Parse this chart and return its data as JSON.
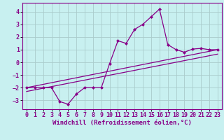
{
  "xlabel": "Windchill (Refroidissement éolien,°C)",
  "bg_color": "#c8f0f0",
  "grid_color": "#aacccc",
  "line_color": "#880088",
  "spine_color": "#880088",
  "xlim": [
    -0.5,
    23.5
  ],
  "ylim": [
    -3.7,
    4.7
  ],
  "xticks": [
    0,
    1,
    2,
    3,
    4,
    5,
    6,
    7,
    8,
    9,
    10,
    11,
    12,
    13,
    14,
    15,
    16,
    17,
    18,
    19,
    20,
    21,
    22,
    23
  ],
  "yticks": [
    -3,
    -2,
    -1,
    0,
    1,
    2,
    3,
    4
  ],
  "line1_x": [
    0,
    1,
    2,
    3,
    4,
    5,
    6,
    7,
    8,
    9,
    10,
    11,
    12,
    13,
    14,
    15,
    16,
    17,
    18,
    19,
    20,
    21,
    22,
    23
  ],
  "line1_y": [
    -2.0,
    -2.0,
    -2.0,
    -2.0,
    -3.1,
    -3.3,
    -2.5,
    -2.0,
    -2.0,
    -2.0,
    -0.1,
    1.7,
    1.5,
    2.6,
    3.0,
    3.6,
    4.2,
    1.4,
    1.0,
    0.8,
    1.05,
    1.1,
    1.0,
    1.0
  ],
  "line2_x": [
    0,
    23
  ],
  "line2_y": [
    -2.0,
    1.0
  ],
  "line3_x": [
    0,
    23
  ],
  "line3_y": [
    -2.3,
    0.65
  ],
  "tick_fontsize": 6.0,
  "xlabel_fontsize": 6.5
}
